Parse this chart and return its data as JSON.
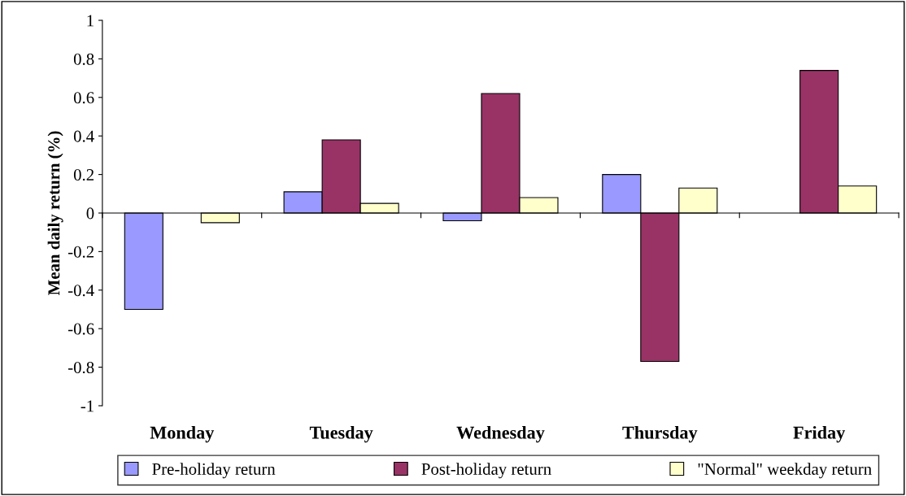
{
  "chart_data": {
    "type": "bar",
    "ylabel": "Mean daily return (%)",
    "categories": [
      "Monday",
      "Tuesday",
      "Wednesday",
      "Thursday",
      "Friday"
    ],
    "series": [
      {
        "name": "Pre-holiday return",
        "color": "#9999ff",
        "values": [
          -0.5,
          0.11,
          -0.04,
          0.2,
          null
        ]
      },
      {
        "name": "Post-holiday return",
        "color": "#993366",
        "values": [
          null,
          0.38,
          0.62,
          -0.77,
          0.74
        ]
      },
      {
        "name": "\"Normal\" weekday return",
        "color": "#ffffcc",
        "values": [
          -0.05,
          0.05,
          0.08,
          0.13,
          0.14
        ]
      }
    ],
    "ylim": [
      -1,
      1
    ],
    "yticks": [
      -1,
      -0.8,
      -0.6,
      -0.4,
      -0.2,
      0,
      0.2,
      0.4,
      0.6,
      0.8,
      1
    ],
    "legend": "bottom"
  }
}
